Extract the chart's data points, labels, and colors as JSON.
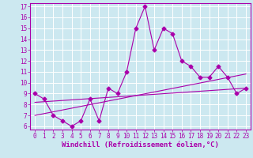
{
  "xlabel": "Windchill (Refroidissement éolien,°C)",
  "bg_color": "#cce8f0",
  "line_color": "#aa00aa",
  "xlim": [
    -0.5,
    23.5
  ],
  "ylim": [
    5.7,
    17.3
  ],
  "xticks": [
    0,
    1,
    2,
    3,
    4,
    5,
    6,
    7,
    8,
    9,
    10,
    11,
    12,
    13,
    14,
    15,
    16,
    17,
    18,
    19,
    20,
    21,
    22,
    23
  ],
  "yticks": [
    6,
    7,
    8,
    9,
    10,
    11,
    12,
    13,
    14,
    15,
    16,
    17
  ],
  "main_x": [
    0,
    1,
    2,
    3,
    4,
    5,
    6,
    7,
    8,
    9,
    10,
    11,
    12,
    13,
    14,
    15,
    16,
    17,
    18,
    19,
    20,
    21,
    22,
    23
  ],
  "main_y": [
    9.0,
    8.5,
    7.0,
    6.5,
    6.0,
    6.5,
    8.5,
    6.5,
    9.5,
    9.0,
    11.0,
    15.0,
    17.0,
    13.0,
    15.0,
    14.5,
    12.0,
    11.5,
    10.5,
    10.5,
    11.5,
    10.5,
    9.0,
    9.5
  ],
  "trend1_x": [
    0,
    23
  ],
  "trend1_y": [
    7.0,
    10.8
  ],
  "trend2_x": [
    0,
    23
  ],
  "trend2_y": [
    8.2,
    9.5
  ],
  "font_size": 6.5,
  "tick_font_size": 5.5,
  "marker": "D",
  "marker_size": 2.5,
  "lw": 0.8
}
